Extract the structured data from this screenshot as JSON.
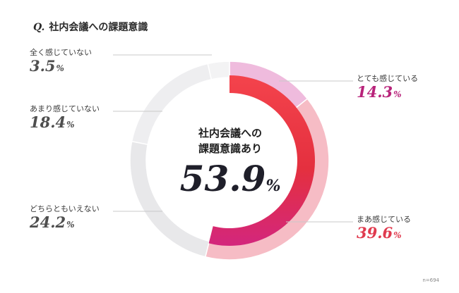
{
  "title": {
    "q": "Q.",
    "text": "社内会議への課題意識"
  },
  "center": {
    "line1": "社内会議への",
    "line2": "課題意識あり",
    "value": "53.9",
    "unit": "%"
  },
  "sample_note": "n=694",
  "colors": {
    "gray_value": "#4e4e4e",
    "purple_value": "#b8237a",
    "red_value": "#e03a4e"
  },
  "chart_data": {
    "type": "pie",
    "style": "donut",
    "unit": "%",
    "inner_ring": {
      "label": "社内会議への課題意識あり",
      "value": 53.9
    },
    "slices": [
      {
        "label": "とても感じている",
        "value": 14.3,
        "color": "#efbbdd"
      },
      {
        "label": "まあ感じている",
        "value": 39.6,
        "color": "#f6bcc5"
      },
      {
        "label": "どちらともいえない",
        "value": 24.2,
        "color": "#e8e8ea"
      },
      {
        "label": "あまり感じていない",
        "value": 18.4,
        "color": "#eeeef0"
      },
      {
        "label": "全く感じていない",
        "value": 3.5,
        "color": "#f3f3f4"
      }
    ]
  }
}
